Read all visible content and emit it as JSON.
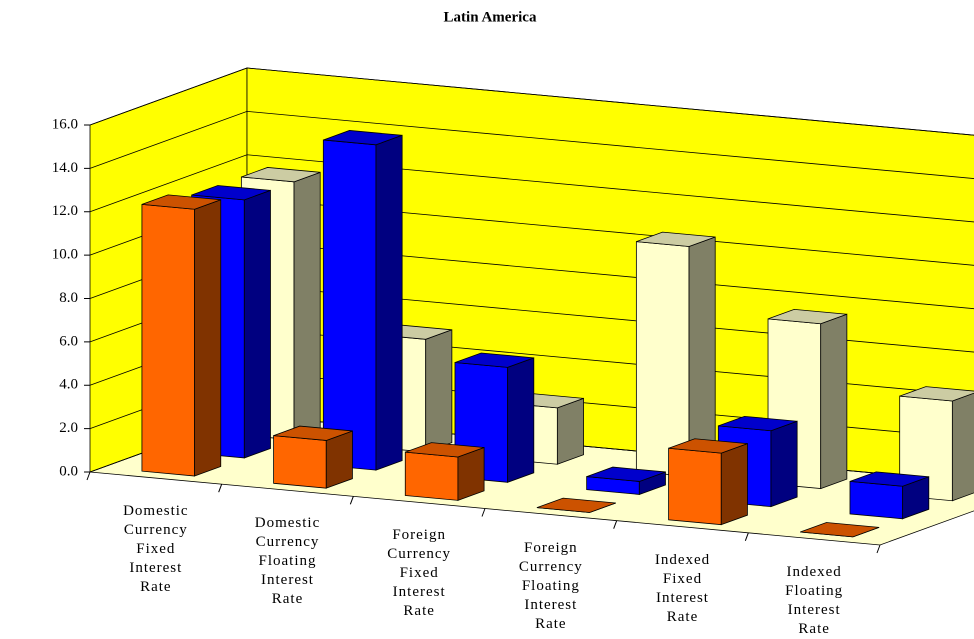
{
  "chart_data": {
    "type": "bar3d",
    "title": "Latin America",
    "categories": [
      "Domestic Currency Fixed Interest Rate",
      "Domestic Currency Floating Interest Rate",
      "Foreign Currency Fixed Interest Rate",
      "Foreign Currency Floating Interest Rate",
      "Indexed Fixed Interest Rate",
      "Indexed Floating Interest Rate"
    ],
    "series": [
      {
        "color": "#ff6600",
        "values": [
          12.3,
          2.2,
          2.0,
          0.0,
          3.3,
          0.0
        ]
      },
      {
        "color": "#0000ff",
        "values": [
          11.9,
          15.0,
          5.3,
          0.6,
          3.5,
          1.5
        ]
      },
      {
        "color": "#ffffcc",
        "values": [
          11.9,
          5.2,
          2.6,
          10.6,
          7.6,
          4.6
        ]
      }
    ],
    "ylim": [
      0,
      16
    ],
    "yticks": [
      {
        "value": 0,
        "label": "0.0"
      },
      {
        "value": 2,
        "label": "2.0"
      },
      {
        "value": 4,
        "label": "4.0"
      },
      {
        "value": 6,
        "label": "6.0"
      },
      {
        "value": 8,
        "label": "8.0"
      },
      {
        "value": 10,
        "label": "10.0"
      },
      {
        "value": 12,
        "label": "12.0"
      },
      {
        "value": 14,
        "label": "14.0"
      },
      {
        "value": 16,
        "label": "16.0"
      }
    ],
    "grid": true
  }
}
